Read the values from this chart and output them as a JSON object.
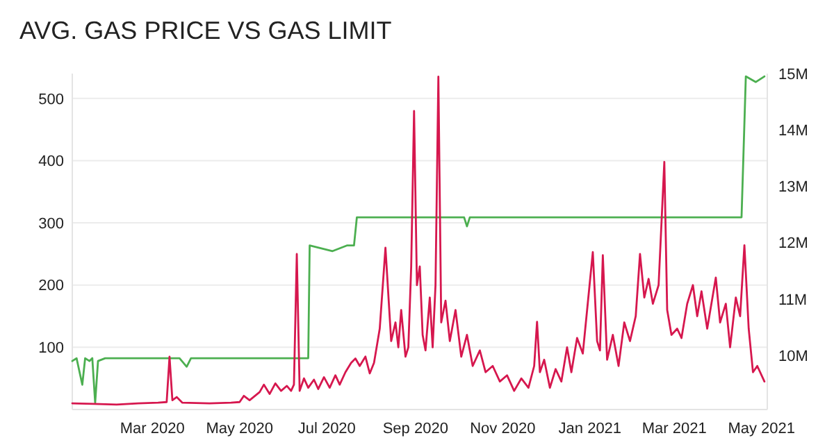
{
  "chart_data": {
    "type": "line",
    "title": "AVG. GAS PRICE VS GAS LIMIT",
    "xlim": [
      "2020-01-05",
      "2021-05-05"
    ],
    "xticks": [
      {
        "value": "2020-03-01",
        "label": "Mar 2020"
      },
      {
        "value": "2020-05-01",
        "label": "May 2020"
      },
      {
        "value": "2020-07-01",
        "label": "Jul 2020"
      },
      {
        "value": "2020-09-01",
        "label": "Sep 2020"
      },
      {
        "value": "2020-11-01",
        "label": "Nov 2020"
      },
      {
        "value": "2021-01-01",
        "label": "Jan 2021"
      },
      {
        "value": "2021-03-01",
        "label": "Mar 2021"
      },
      {
        "value": "2021-05-01",
        "label": "May 2021"
      }
    ],
    "ylim": [
      0,
      540
    ],
    "yticks": [
      100,
      200,
      300,
      400,
      500
    ],
    "y2lim": [
      9040000,
      15000000
    ],
    "y2ticks": [
      {
        "value": 10000000,
        "label": "10M"
      },
      {
        "value": 11000000,
        "label": "11M"
      },
      {
        "value": 12000000,
        "label": "12M"
      },
      {
        "value": 13000000,
        "label": "13M"
      },
      {
        "value": 14000000,
        "label": "14M"
      },
      {
        "value": 15000000,
        "label": "15M"
      }
    ],
    "grid": "y",
    "line_style": "solid",
    "marker": "none",
    "series": [
      {
        "color": "#4caf50",
        "axis": "y2",
        "x": [
          "2020-01-05",
          "2020-01-08",
          "2020-01-12",
          "2020-01-14",
          "2020-01-17",
          "2020-01-19",
          "2020-01-21",
          "2020-01-23",
          "2020-01-28",
          "2020-03-20",
          "2020-03-25",
          "2020-03-28",
          "2020-06-18",
          "2020-06-19",
          "2020-07-05",
          "2020-07-15",
          "2020-07-20",
          "2020-07-22",
          "2020-10-05",
          "2020-10-07",
          "2020-10-09",
          "2021-04-17",
          "2021-04-20",
          "2021-04-27",
          "2021-05-03"
        ],
        "values": [
          9900000,
          9950000,
          9480000,
          9950000,
          9900000,
          9950000,
          9160000,
          9900000,
          9950000,
          9950000,
          9800000,
          9950000,
          9950000,
          11950000,
          11850000,
          11950000,
          11950000,
          12450000,
          12450000,
          12290000,
          12450000,
          12450000,
          14950000,
          14850000,
          14950000
        ]
      },
      {
        "color": "#d6174e",
        "axis": "y",
        "x": [
          "2020-01-05",
          "2020-01-20",
          "2020-02-05",
          "2020-02-20",
          "2020-03-05",
          "2020-03-11",
          "2020-03-13",
          "2020-03-15",
          "2020-03-18",
          "2020-03-22",
          "2020-04-10",
          "2020-04-25",
          "2020-05-01",
          "2020-05-04",
          "2020-05-08",
          "2020-05-15",
          "2020-05-18",
          "2020-05-22",
          "2020-05-26",
          "2020-05-30",
          "2020-06-03",
          "2020-06-06",
          "2020-06-08",
          "2020-06-10",
          "2020-06-12",
          "2020-06-15",
          "2020-06-18",
          "2020-06-22",
          "2020-06-25",
          "2020-06-29",
          "2020-07-03",
          "2020-07-07",
          "2020-07-10",
          "2020-07-14",
          "2020-07-18",
          "2020-07-21",
          "2020-07-24",
          "2020-07-28",
          "2020-07-31",
          "2020-08-03",
          "2020-08-07",
          "2020-08-11",
          "2020-08-15",
          "2020-08-18",
          "2020-08-20",
          "2020-08-22",
          "2020-08-25",
          "2020-08-27",
          "2020-08-29",
          "2020-08-31",
          "2020-09-02",
          "2020-09-04",
          "2020-09-06",
          "2020-09-08",
          "2020-09-11",
          "2020-09-13",
          "2020-09-15",
          "2020-09-17",
          "2020-09-19",
          "2020-09-22",
          "2020-09-25",
          "2020-09-29",
          "2020-10-03",
          "2020-10-07",
          "2020-10-11",
          "2020-10-16",
          "2020-10-20",
          "2020-10-25",
          "2020-10-30",
          "2020-11-04",
          "2020-11-09",
          "2020-11-14",
          "2020-11-19",
          "2020-11-23",
          "2020-11-25",
          "2020-11-27",
          "2020-11-30",
          "2020-12-04",
          "2020-12-08",
          "2020-12-12",
          "2020-12-16",
          "2020-12-19",
          "2020-12-23",
          "2020-12-27",
          "2021-01-03",
          "2021-01-06",
          "2021-01-08",
          "2021-01-10",
          "2021-01-13",
          "2021-01-17",
          "2021-01-21",
          "2021-01-25",
          "2021-01-29",
          "2021-02-02",
          "2021-02-05",
          "2021-02-08",
          "2021-02-11",
          "2021-02-14",
          "2021-02-18",
          "2021-02-22",
          "2021-02-24",
          "2021-02-27",
          "2021-03-03",
          "2021-03-06",
          "2021-03-10",
          "2021-03-14",
          "2021-03-17",
          "2021-03-20",
          "2021-03-24",
          "2021-03-30",
          "2021-04-02",
          "2021-04-06",
          "2021-04-09",
          "2021-04-13",
          "2021-04-16",
          "2021-04-19",
          "2021-04-22",
          "2021-04-25",
          "2021-04-28",
          "2021-05-03"
        ],
        "values": [
          10,
          9,
          8,
          10,
          11,
          12,
          85,
          15,
          20,
          11,
          10,
          11,
          12,
          22,
          15,
          28,
          40,
          25,
          42,
          30,
          38,
          30,
          40,
          250,
          30,
          50,
          35,
          48,
          33,
          52,
          35,
          55,
          40,
          60,
          75,
          82,
          70,
          85,
          58,
          75,
          130,
          260,
          110,
          140,
          100,
          160,
          85,
          100,
          230,
          480,
          200,
          230,
          120,
          95,
          180,
          100,
          200,
          535,
          140,
          175,
          110,
          160,
          85,
          120,
          70,
          95,
          60,
          70,
          45,
          55,
          30,
          50,
          35,
          70,
          141,
          60,
          80,
          35,
          65,
          45,
          100,
          60,
          115,
          90,
          253,
          110,
          95,
          248,
          80,
          120,
          70,
          140,
          110,
          150,
          250,
          180,
          210,
          170,
          200,
          398,
          160,
          120,
          130,
          115,
          170,
          200,
          150,
          190,
          130,
          212,
          140,
          170,
          100,
          180,
          150,
          264,
          130,
          60,
          70,
          45
        ]
      }
    ]
  }
}
